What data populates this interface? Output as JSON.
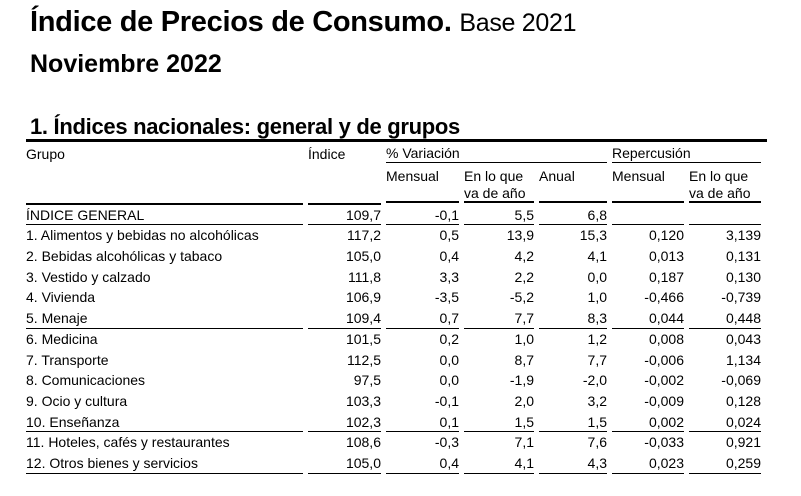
{
  "title": "Índice de Precios de Consumo.",
  "base": "Base 2021",
  "period": "Noviembre 2022",
  "section_title": "1. Índices nacionales: general y de grupos",
  "headers": {
    "grupo": "Grupo",
    "indice": "Índice",
    "variacion": "% Variación",
    "repercusion": "Repercusión",
    "mensual": "Mensual",
    "en_lo_que_1": "En lo que",
    "en_lo_que_2": "va de año",
    "anual": "Anual"
  },
  "rows": [
    {
      "grupo": "ÍNDICE GENERAL",
      "indice": "109,7",
      "var_mensual": "-0,1",
      "var_ano": "5,5",
      "var_anual": "6,8",
      "rep_mensual": "",
      "rep_ano": ""
    },
    {
      "grupo": "1. Alimentos y bebidas no alcohólicas",
      "indice": "117,2",
      "var_mensual": "0,5",
      "var_ano": "13,9",
      "var_anual": "15,3",
      "rep_mensual": "0,120",
      "rep_ano": "3,139"
    },
    {
      "grupo": "2. Bebidas alcohólicas y tabaco",
      "indice": "105,0",
      "var_mensual": "0,4",
      "var_ano": "4,2",
      "var_anual": "4,1",
      "rep_mensual": "0,013",
      "rep_ano": "0,131"
    },
    {
      "grupo": "3. Vestido y calzado",
      "indice": "111,8",
      "var_mensual": "3,3",
      "var_ano": "2,2",
      "var_anual": "0,0",
      "rep_mensual": "0,187",
      "rep_ano": "0,130"
    },
    {
      "grupo": "4. Vivienda",
      "indice": "106,9",
      "var_mensual": "-3,5",
      "var_ano": "-5,2",
      "var_anual": "1,0",
      "rep_mensual": "-0,466",
      "rep_ano": "-0,739"
    },
    {
      "grupo": "5. Menaje",
      "indice": "109,4",
      "var_mensual": "0,7",
      "var_ano": "7,7",
      "var_anual": "8,3",
      "rep_mensual": "0,044",
      "rep_ano": "0,448"
    },
    {
      "grupo": "6. Medicina",
      "indice": "101,5",
      "var_mensual": "0,2",
      "var_ano": "1,0",
      "var_anual": "1,2",
      "rep_mensual": "0,008",
      "rep_ano": "0,043"
    },
    {
      "grupo": "7. Transporte",
      "indice": "112,5",
      "var_mensual": "0,0",
      "var_ano": "8,7",
      "var_anual": "7,7",
      "rep_mensual": "-0,006",
      "rep_ano": "1,134"
    },
    {
      "grupo": "8. Comunicaciones",
      "indice": "97,5",
      "var_mensual": "0,0",
      "var_ano": "-1,9",
      "var_anual": "-2,0",
      "rep_mensual": "-0,002",
      "rep_ano": "-0,069"
    },
    {
      "grupo": "9. Ocio y cultura",
      "indice": "103,3",
      "var_mensual": "-0,1",
      "var_ano": "2,0",
      "var_anual": "3,2",
      "rep_mensual": "-0,009",
      "rep_ano": "0,128"
    },
    {
      "grupo": "10. Enseñanza",
      "indice": "102,3",
      "var_mensual": "0,1",
      "var_ano": "1,5",
      "var_anual": "1,5",
      "rep_mensual": "0,002",
      "rep_ano": "0,024"
    },
    {
      "grupo": "11. Hoteles, cafés y restaurantes",
      "indice": "108,6",
      "var_mensual": "-0,3",
      "var_ano": "7,1",
      "var_anual": "7,6",
      "rep_mensual": "-0,033",
      "rep_ano": "0,921"
    },
    {
      "grupo": "12. Otros bienes y servicios",
      "indice": "105,0",
      "var_mensual": "0,4",
      "var_ano": "4,1",
      "var_anual": "4,3",
      "rep_mensual": "0,023",
      "rep_ano": "0,259"
    }
  ]
}
